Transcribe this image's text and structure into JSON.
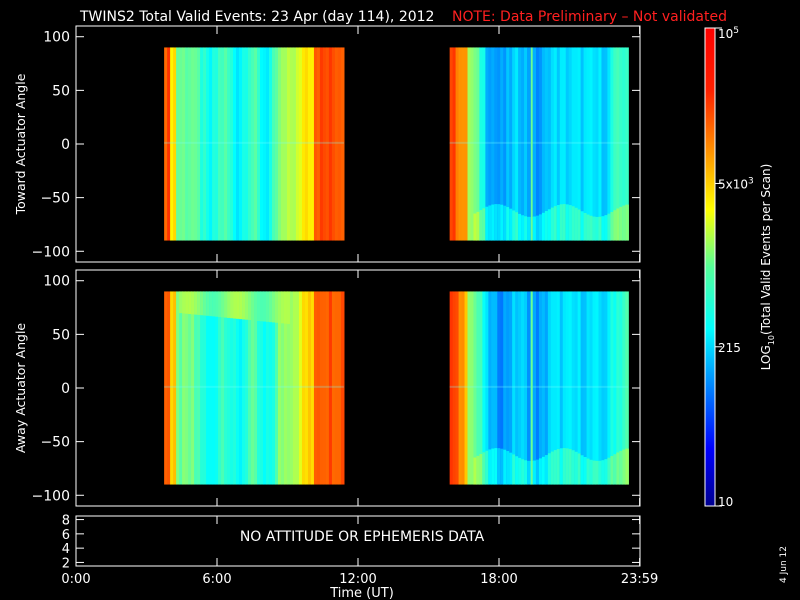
{
  "title": "TWINS2  Total Valid Events: 23 Apr (day 114), 2012",
  "note": "NOTE: Data Preliminary – Not validated",
  "datestamp": "4 Jun 12",
  "colors": {
    "background": "#000000",
    "axes": "#ffffff",
    "note": "#ff2020",
    "nodata": "#000000"
  },
  "chart_data": [
    {
      "type": "heatmap",
      "ylabel": "Toward Actuator Angle",
      "ylim": [
        -110,
        110
      ],
      "yticks": [
        100,
        50,
        0,
        -50,
        -100
      ],
      "xlim": [
        0,
        24
      ],
      "data_y_range": [
        -90,
        90
      ],
      "data_intervals_hours": [
        [
          3.75,
          11.4
        ],
        [
          15.9,
          23.5
        ]
      ]
    },
    {
      "type": "heatmap",
      "ylabel": "Away Actuator Angle",
      "ylim": [
        -110,
        110
      ],
      "yticks": [
        100,
        50,
        0,
        -50,
        -100
      ],
      "xlim": [
        0,
        24
      ],
      "data_y_range": [
        -90,
        90
      ],
      "data_intervals_hours": [
        [
          3.75,
          11.4
        ],
        [
          15.9,
          23.5
        ]
      ]
    },
    {
      "type": "line",
      "ylim": [
        1.5,
        8.5
      ],
      "yticks": [
        8,
        6,
        4,
        2
      ],
      "annotation": "NO ATTITUDE OR EPHEMERIS DATA",
      "xlim": [
        0,
        24
      ],
      "xlabel": "Time (UT)",
      "xticks": [
        {
          "h": 0,
          "label": "0:00"
        },
        {
          "h": 6,
          "label": "6:00"
        },
        {
          "h": 12,
          "label": "12:00"
        },
        {
          "h": 18,
          "label": "18:00"
        },
        {
          "h": 23.983,
          "label": "23:59"
        }
      ]
    }
  ],
  "colorbar": {
    "label_log": "LOG",
    "label_sub": "10",
    "label_rest": "(Total Valid Events per Scan)",
    "range": [
      10,
      100000
    ],
    "scale": "log",
    "tick_labels": [
      {
        "value": 10,
        "text": "10"
      },
      {
        "value": 215,
        "text": "215"
      },
      {
        "value": 5000,
        "text": "5x10",
        "exp": "3"
      },
      {
        "value": 100000,
        "text": "10",
        "exp": "5"
      }
    ]
  }
}
